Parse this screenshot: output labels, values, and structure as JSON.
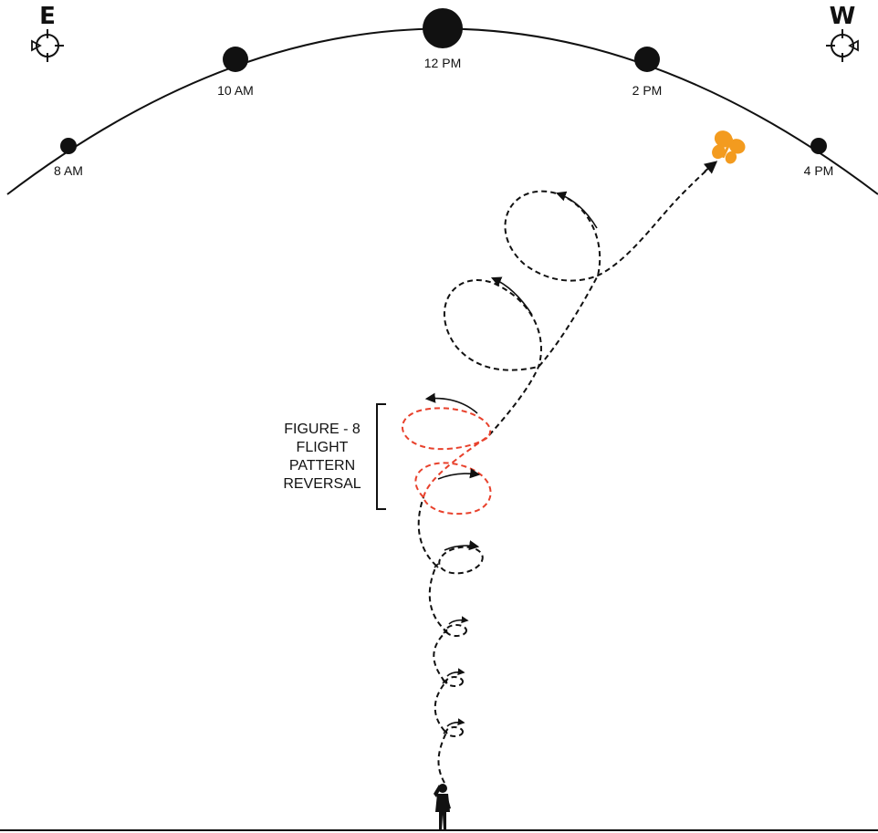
{
  "directions": {
    "east": "E",
    "west": "W"
  },
  "sun_times": [
    {
      "label": "8 AM"
    },
    {
      "label": "10 AM"
    },
    {
      "label": "12 PM"
    },
    {
      "label": "2 PM"
    },
    {
      "label": "4 PM"
    }
  ],
  "annotation": {
    "lines": [
      "FIGURE - 8",
      "FLIGHT",
      "PATTERN",
      "REVERSAL"
    ]
  },
  "colors": {
    "ink": "#111111",
    "reversal": "#e8412c",
    "butterfly": "#f39b1f"
  },
  "icons": {
    "compass": "compass-crosshair-icon",
    "butterfly": "butterfly-icon",
    "observer": "person-silhouette-icon"
  }
}
